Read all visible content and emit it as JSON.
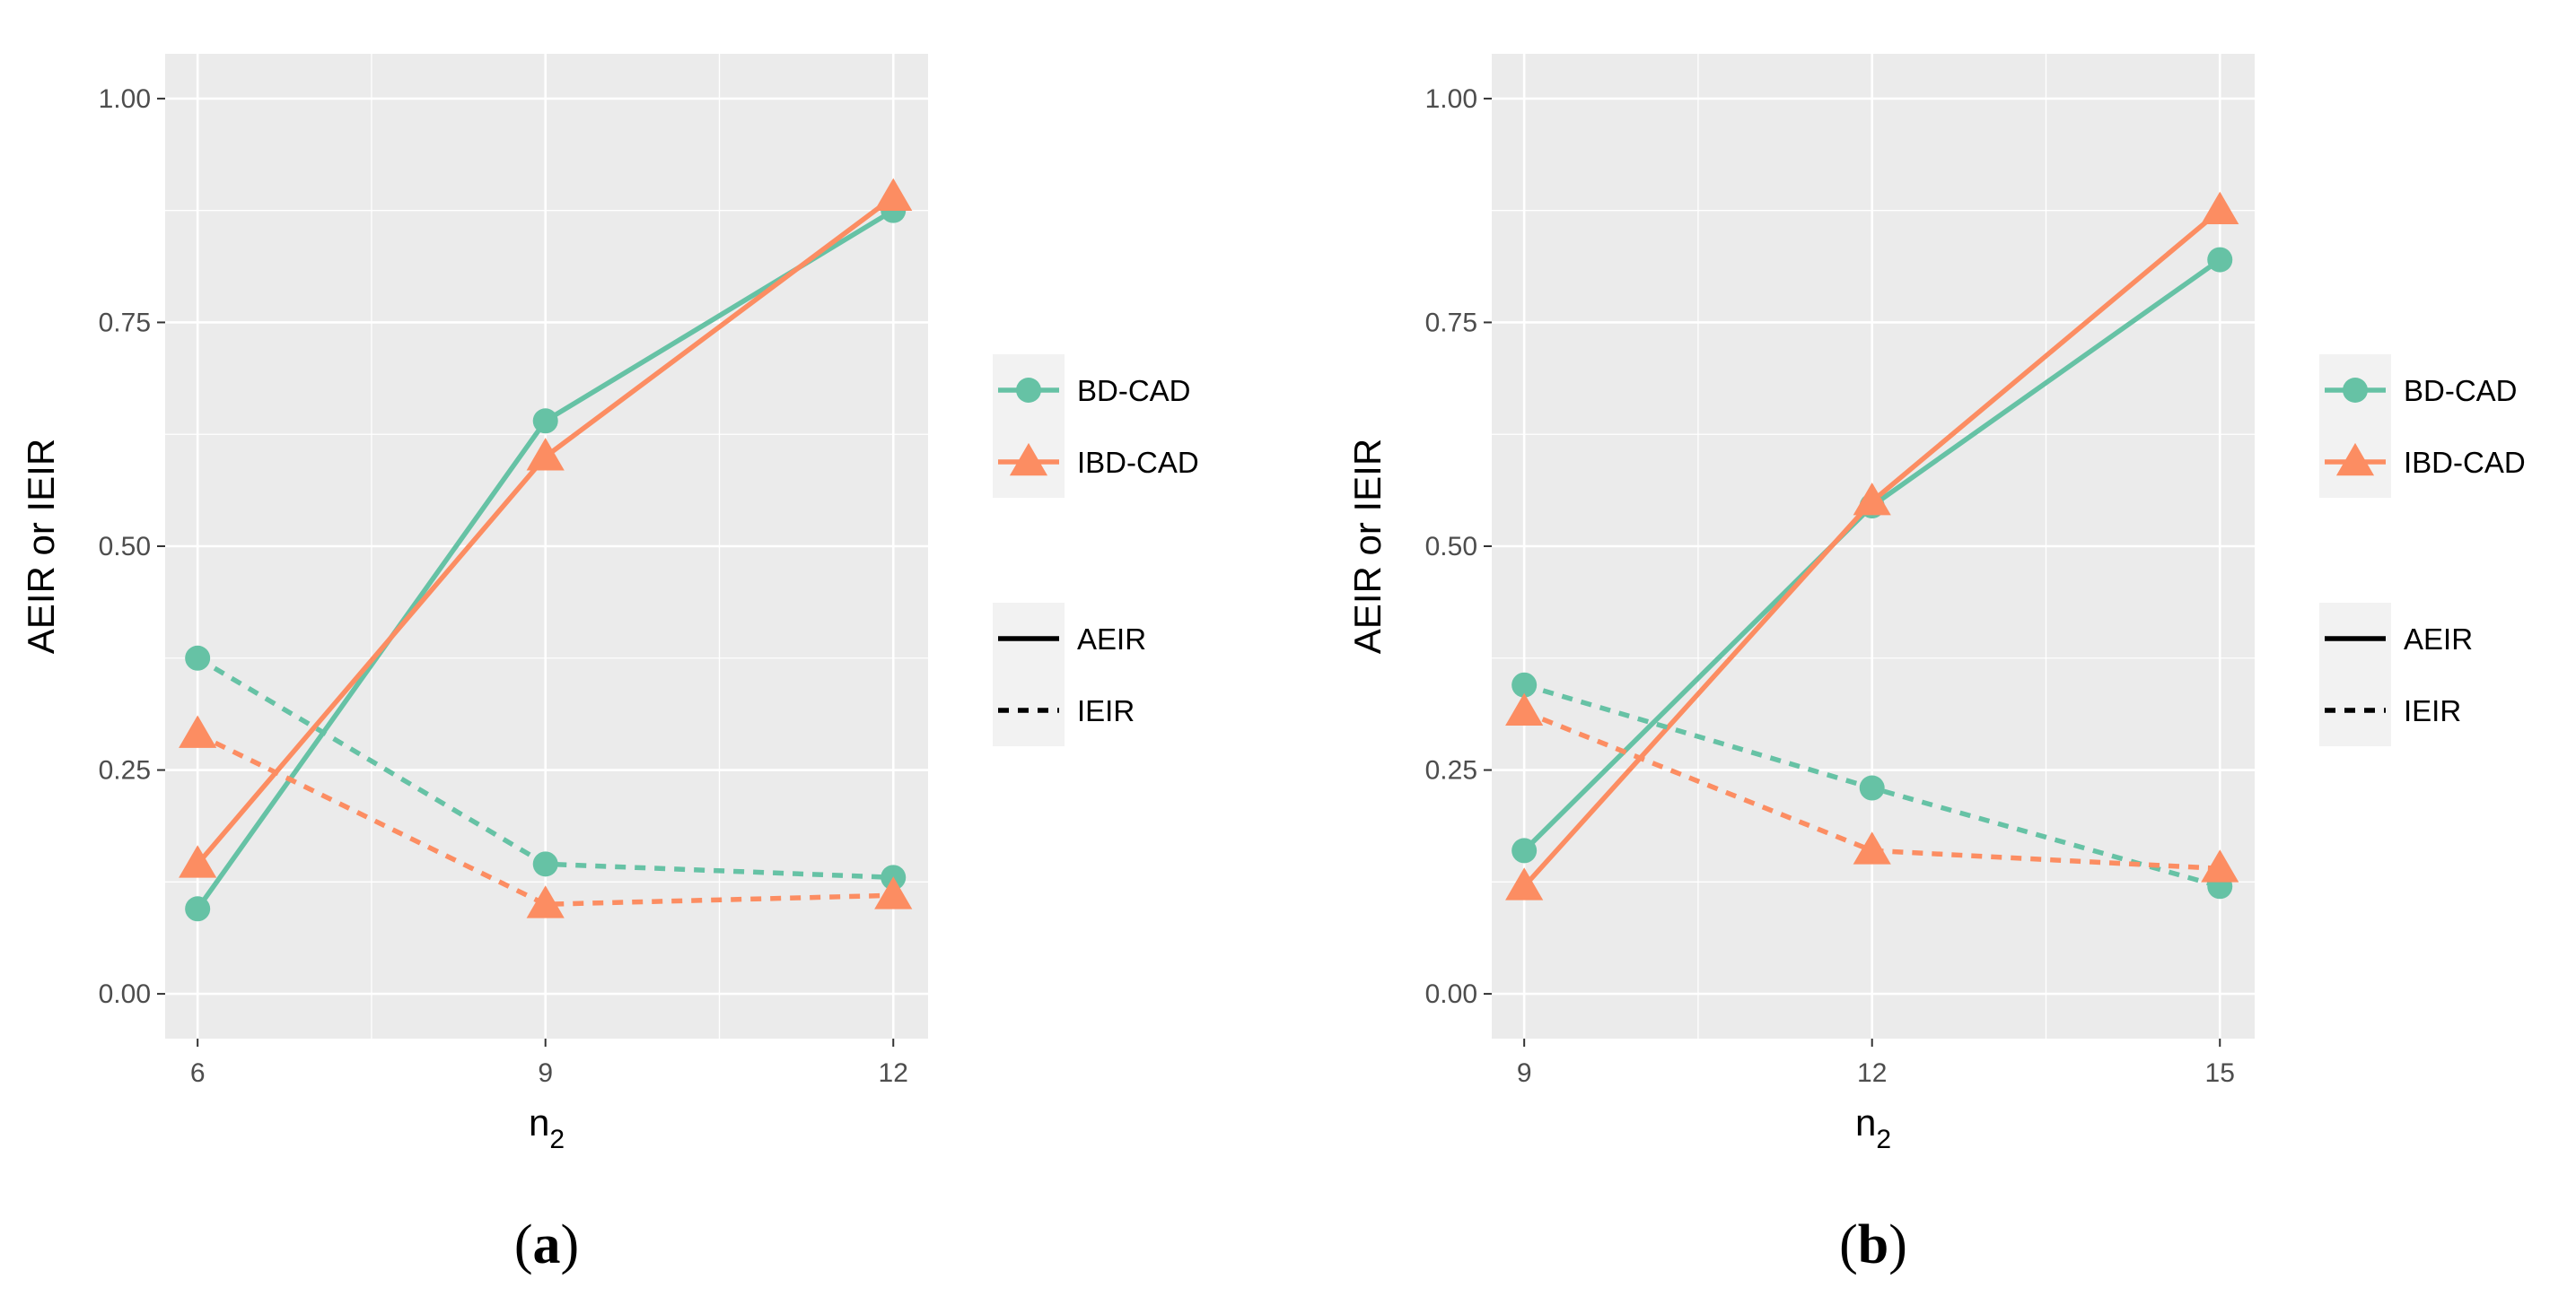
{
  "colors": {
    "bd_cad": "#66c2a5",
    "ibd_cad": "#fc8d62",
    "panel_bg": "#ebebeb",
    "grid": "#ffffff",
    "legend_bg": "#f2f2f2"
  },
  "legend": {
    "series": [
      {
        "key": "bd",
        "label": "BD-CAD",
        "marker": "circle"
      },
      {
        "key": "ibd",
        "label": "IBD-CAD",
        "marker": "triangle"
      }
    ],
    "linetypes": [
      {
        "key": "aeir",
        "label": "AEIR",
        "dash": "solid"
      },
      {
        "key": "ieir",
        "label": "IEIR",
        "dash": "dashed"
      }
    ]
  },
  "chart_data": [
    {
      "id": "a",
      "type": "line",
      "caption_open": "(",
      "caption_letter": "a",
      "caption_close": ")",
      "xlabel_main": "n",
      "xlabel_sub": "2",
      "ylabel": "AEIR or IEIR",
      "x": [
        6,
        9,
        12
      ],
      "x_tick_labels": [
        "6",
        "9",
        "12"
      ],
      "xlim": [
        5.72,
        12.3
      ],
      "ylim": [
        -0.05,
        1.05
      ],
      "y_ticks": [
        0,
        0.25,
        0.5,
        0.75,
        1
      ],
      "y_tick_labels": [
        "0.00",
        "0.25",
        "0.50",
        "0.75",
        "1.00"
      ],
      "series": [
        {
          "name": "BD-CAD",
          "metric": "AEIR",
          "values": [
            0.095,
            0.64,
            0.875
          ]
        },
        {
          "name": "IBD-CAD",
          "metric": "AEIR",
          "values": [
            0.145,
            0.6,
            0.89
          ]
        },
        {
          "name": "BD-CAD",
          "metric": "IEIR",
          "values": [
            0.375,
            0.145,
            0.13
          ]
        },
        {
          "name": "IBD-CAD",
          "metric": "IEIR",
          "values": [
            0.29,
            0.1,
            0.11
          ]
        }
      ]
    },
    {
      "id": "b",
      "type": "line",
      "caption_open": "(",
      "caption_letter": "b",
      "caption_close": ")",
      "xlabel_main": "n",
      "xlabel_sub": "2",
      "ylabel": "AEIR or IEIR",
      "x": [
        9,
        12,
        15
      ],
      "x_tick_labels": [
        "9",
        "12",
        "15"
      ],
      "xlim": [
        8.72,
        15.3
      ],
      "ylim": [
        -0.05,
        1.05
      ],
      "y_ticks": [
        0,
        0.25,
        0.5,
        0.75,
        1
      ],
      "y_tick_labels": [
        "0.00",
        "0.25",
        "0.50",
        "0.75",
        "1.00"
      ],
      "series": [
        {
          "name": "BD-CAD",
          "metric": "AEIR",
          "values": [
            0.16,
            0.545,
            0.82
          ]
        },
        {
          "name": "IBD-CAD",
          "metric": "AEIR",
          "values": [
            0.12,
            0.55,
            0.875
          ]
        },
        {
          "name": "BD-CAD",
          "metric": "IEIR",
          "values": [
            0.345,
            0.23,
            0.12
          ]
        },
        {
          "name": "IBD-CAD",
          "metric": "IEIR",
          "values": [
            0.315,
            0.16,
            0.14
          ]
        }
      ]
    }
  ]
}
